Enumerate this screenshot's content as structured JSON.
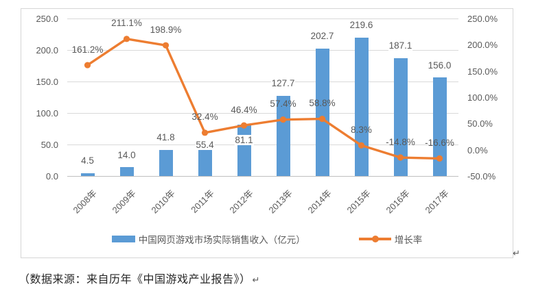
{
  "page": {
    "source_note": "（数据来源：来自历年《中国游戏产业报告》）",
    "return_mark": "↵"
  },
  "chart_data": {
    "type": "bar",
    "subtype": "combo-bar-line-dual-axis",
    "categories": [
      "2008年",
      "2009年",
      "2010年",
      "2011年",
      "2012年",
      "2013年",
      "2014年",
      "2015年",
      "2016年",
      "2017年"
    ],
    "series": [
      {
        "name": "中国网页游戏市场实际销售收入（亿元）",
        "render": "bar",
        "axis": "left",
        "color": "#5B9BD5",
        "values": [
          4.5,
          14.0,
          41.8,
          55.4,
          81.1,
          127.7,
          202.7,
          219.6,
          187.1,
          156.0
        ],
        "labels": [
          "4.5",
          "14.0",
          "41.8",
          "55.4",
          "81.1",
          "127.7",
          "202.7",
          "219.6",
          "187.1",
          "156.0"
        ]
      },
      {
        "name": "增长率",
        "render": "line",
        "axis": "right",
        "color": "#ED7D31",
        "values": [
          161.2,
          211.1,
          198.9,
          32.4,
          46.4,
          57.4,
          58.8,
          8.3,
          -14.8,
          -16.6
        ],
        "labels": [
          "161.2%",
          "211.1%",
          "198.9%",
          "32.4%",
          "46.4%",
          "57.4%",
          "58.8%",
          "8.3%",
          "-14.8%",
          "-16.6%"
        ]
      }
    ],
    "left_axis": {
      "min": 0,
      "max": 250,
      "tick_labels": [
        "250.0",
        "200.0",
        "150.0",
        "100.0",
        "50.0",
        "0.0"
      ]
    },
    "right_axis": {
      "min": -50,
      "max": 250,
      "tick_labels": [
        "250.0%",
        "200.0%",
        "150.0%",
        "100.0%",
        "50.0%",
        "0.0%",
        "-50.0%"
      ]
    },
    "grid": "horizontal",
    "legend_position": "bottom",
    "colors": {
      "bar": "#5B9BD5",
      "line": "#ED7D31",
      "grid": "#D9D9D9",
      "axis_line": "#BFBFBF",
      "text": "#595959",
      "border": "#D6D6D6"
    }
  }
}
